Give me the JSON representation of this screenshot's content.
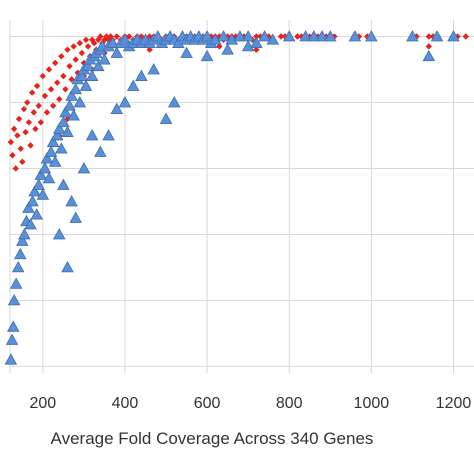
{
  "chart_data": {
    "type": "scatter",
    "title": "",
    "xlabel": "Average Fold Coverage Across 340 Genes",
    "ylabel": "",
    "xlim": [
      120,
      1250
    ],
    "ylim": [
      -2,
      105
    ],
    "x_ticks": [
      200,
      400,
      600,
      800,
      1000,
      1200
    ],
    "x_tick_labels": [
      "200",
      "400",
      "600",
      "800",
      "1000",
      "1200"
    ],
    "y_gridlines": [
      0,
      20,
      40,
      60,
      80,
      100
    ],
    "grid": true,
    "legend": "none",
    "series": [
      {
        "marker": "diamond",
        "color": "#e8231c",
        "points": [
          [
            122,
            68
          ],
          [
            126,
            64
          ],
          [
            130,
            72
          ],
          [
            134,
            60
          ],
          [
            138,
            70
          ],
          [
            142,
            75
          ],
          [
            146,
            66
          ],
          [
            150,
            62
          ],
          [
            154,
            78
          ],
          [
            158,
            71
          ],
          [
            162,
            80
          ],
          [
            166,
            74
          ],
          [
            170,
            67
          ],
          [
            174,
            83
          ],
          [
            178,
            77
          ],
          [
            182,
            72
          ],
          [
            186,
            85
          ],
          [
            190,
            79
          ],
          [
            195,
            74
          ],
          [
            200,
            88
          ],
          [
            205,
            82
          ],
          [
            210,
            77
          ],
          [
            215,
            90
          ],
          [
            220,
            84
          ],
          [
            225,
            79
          ],
          [
            230,
            92
          ],
          [
            235,
            86
          ],
          [
            240,
            81
          ],
          [
            245,
            94
          ],
          [
            250,
            88
          ],
          [
            255,
            84
          ],
          [
            260,
            96
          ],
          [
            265,
            91
          ],
          [
            270,
            87
          ],
          [
            275,
            97
          ],
          [
            280,
            93
          ],
          [
            285,
            89
          ],
          [
            290,
            98
          ],
          [
            295,
            95
          ],
          [
            300,
            92
          ],
          [
            305,
            99
          ],
          [
            310,
            97
          ],
          [
            315,
            94
          ],
          [
            320,
            99
          ],
          [
            325,
            98
          ],
          [
            330,
            96
          ],
          [
            335,
            99
          ],
          [
            340,
            100
          ],
          [
            345,
            98
          ],
          [
            350,
            99
          ],
          [
            355,
            100
          ],
          [
            360,
            99
          ],
          [
            365,
            100
          ],
          [
            370,
            99
          ],
          [
            380,
            100
          ],
          [
            390,
            99
          ],
          [
            400,
            100
          ],
          [
            410,
            100
          ],
          [
            420,
            99
          ],
          [
            430,
            100
          ],
          [
            440,
            100
          ],
          [
            450,
            99
          ],
          [
            460,
            100
          ],
          [
            470,
            100
          ],
          [
            480,
            100
          ],
          [
            490,
            99
          ],
          [
            500,
            100
          ],
          [
            510,
            100
          ],
          [
            520,
            100
          ],
          [
            530,
            99
          ],
          [
            540,
            100
          ],
          [
            550,
            100
          ],
          [
            560,
            100
          ],
          [
            570,
            100
          ],
          [
            580,
            99
          ],
          [
            590,
            100
          ],
          [
            600,
            100
          ],
          [
            610,
            100
          ],
          [
            620,
            100
          ],
          [
            630,
            100
          ],
          [
            640,
            99
          ],
          [
            650,
            100
          ],
          [
            660,
            100
          ],
          [
            670,
            100
          ],
          [
            680,
            100
          ],
          [
            690,
            100
          ],
          [
            700,
            100
          ],
          [
            710,
            99
          ],
          [
            720,
            100
          ],
          [
            730,
            100
          ],
          [
            740,
            100
          ],
          [
            750,
            100
          ],
          [
            780,
            100
          ],
          [
            790,
            100
          ],
          [
            820,
            100
          ],
          [
            830,
            100
          ],
          [
            840,
            100
          ],
          [
            850,
            100
          ],
          [
            870,
            100
          ],
          [
            880,
            100
          ],
          [
            890,
            100
          ],
          [
            900,
            100
          ],
          [
            910,
            100
          ],
          [
            960,
            100
          ],
          [
            970,
            100
          ],
          [
            990,
            100
          ],
          [
            1000,
            100
          ],
          [
            1100,
            100
          ],
          [
            1110,
            100
          ],
          [
            1140,
            100
          ],
          [
            1150,
            100
          ],
          [
            1160,
            100
          ],
          [
            1140,
            97
          ],
          [
            1210,
            100
          ],
          [
            1230,
            100
          ],
          [
            240,
            70
          ],
          [
            260,
            75
          ],
          [
            300,
            88
          ],
          [
            320,
            90
          ],
          [
            350,
            95
          ],
          [
            380,
            97
          ],
          [
            420,
            98
          ],
          [
            460,
            96
          ],
          [
            720,
            96
          ],
          [
            630,
            97
          ]
        ]
      },
      {
        "marker": "triangle",
        "color": "#5b8fd6",
        "points": [
          [
            122,
            2
          ],
          [
            125,
            8
          ],
          [
            128,
            12
          ],
          [
            130,
            20
          ],
          [
            135,
            25
          ],
          [
            140,
            30
          ],
          [
            145,
            34
          ],
          [
            150,
            38
          ],
          [
            155,
            40
          ],
          [
            160,
            44
          ],
          [
            165,
            48
          ],
          [
            170,
            43
          ],
          [
            175,
            50
          ],
          [
            180,
            53
          ],
          [
            185,
            46
          ],
          [
            190,
            55
          ],
          [
            195,
            58
          ],
          [
            200,
            52
          ],
          [
            205,
            60
          ],
          [
            210,
            63
          ],
          [
            215,
            57
          ],
          [
            220,
            65
          ],
          [
            225,
            68
          ],
          [
            230,
            62
          ],
          [
            235,
            70
          ],
          [
            240,
            72
          ],
          [
            245,
            66
          ],
          [
            250,
            74
          ],
          [
            255,
            77
          ],
          [
            260,
            71
          ],
          [
            265,
            79
          ],
          [
            270,
            82
          ],
          [
            275,
            76
          ],
          [
            280,
            84
          ],
          [
            285,
            87
          ],
          [
            290,
            80
          ],
          [
            295,
            88
          ],
          [
            300,
            90
          ],
          [
            305,
            85
          ],
          [
            310,
            91
          ],
          [
            315,
            93
          ],
          [
            320,
            88
          ],
          [
            325,
            94
          ],
          [
            330,
            95
          ],
          [
            335,
            91
          ],
          [
            340,
            96
          ],
          [
            345,
            97
          ],
          [
            350,
            93
          ],
          [
            360,
            97
          ],
          [
            370,
            98
          ],
          [
            380,
            95
          ],
          [
            390,
            98
          ],
          [
            400,
            99
          ],
          [
            410,
            97
          ],
          [
            420,
            98
          ],
          [
            430,
            99
          ],
          [
            440,
            98
          ],
          [
            450,
            99
          ],
          [
            460,
            98
          ],
          [
            470,
            99
          ],
          [
            480,
            100
          ],
          [
            490,
            98
          ],
          [
            500,
            99
          ],
          [
            510,
            100
          ],
          [
            520,
            99
          ],
          [
            530,
            98
          ],
          [
            540,
            100
          ],
          [
            550,
            99
          ],
          [
            560,
            100
          ],
          [
            570,
            99
          ],
          [
            580,
            100
          ],
          [
            590,
            99
          ],
          [
            600,
            100
          ],
          [
            610,
            98
          ],
          [
            620,
            99
          ],
          [
            640,
            100
          ],
          [
            660,
            99
          ],
          [
            680,
            100
          ],
          [
            700,
            100
          ],
          [
            720,
            98
          ],
          [
            740,
            100
          ],
          [
            760,
            99
          ],
          [
            800,
            100
          ],
          [
            840,
            100
          ],
          [
            860,
            100
          ],
          [
            880,
            100
          ],
          [
            900,
            100
          ],
          [
            960,
            100
          ],
          [
            1000,
            100
          ],
          [
            1100,
            100
          ],
          [
            1140,
            94
          ],
          [
            1160,
            100
          ],
          [
            1200,
            100
          ],
          [
            240,
            40
          ],
          [
            250,
            55
          ],
          [
            260,
            30
          ],
          [
            270,
            50
          ],
          [
            280,
            45
          ],
          [
            300,
            60
          ],
          [
            320,
            70
          ],
          [
            340,
            65
          ],
          [
            360,
            70
          ],
          [
            380,
            78
          ],
          [
            400,
            80
          ],
          [
            420,
            85
          ],
          [
            440,
            88
          ],
          [
            470,
            90
          ],
          [
            500,
            75
          ],
          [
            520,
            80
          ],
          [
            550,
            95
          ],
          [
            600,
            94
          ],
          [
            650,
            96
          ],
          [
            700,
            97
          ]
        ]
      }
    ]
  }
}
